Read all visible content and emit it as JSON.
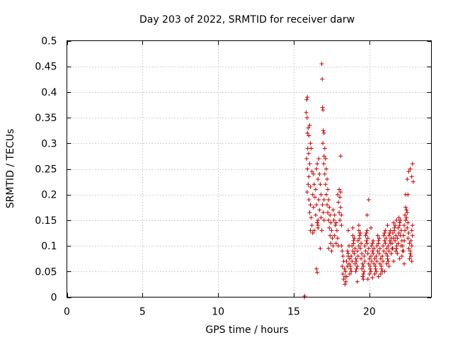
{
  "chart_data": {
    "type": "scatter",
    "title": "Day 203 of 2022, SRMTID for receiver darw",
    "xlabel": "GPS time / hours",
    "ylabel": "SRMTID / TECUs",
    "xlim": [
      0,
      24.1
    ],
    "ylim": [
      0,
      0.5
    ],
    "xticks": [
      0,
      5,
      10,
      15,
      20
    ],
    "xtick_labels": [
      "0",
      "5",
      "10",
      "15",
      "20"
    ],
    "yticks": [
      0,
      0.05,
      0.1,
      0.15,
      0.2,
      0.25,
      0.3,
      0.35,
      0.4,
      0.45,
      0.5
    ],
    "ytick_labels": [
      "0",
      "0.05",
      "0.1",
      "0.15",
      "0.2",
      "0.25",
      "0.3",
      "0.35",
      "0.4",
      "0.45",
      "0.5"
    ],
    "grid": true,
    "marker": "+",
    "series_color": "#cc0000",
    "points": [
      [
        15.7,
        0.0
      ],
      [
        15.72,
        0.002
      ],
      [
        15.85,
        0.385
      ],
      [
        15.9,
        0.39
      ],
      [
        15.82,
        0.36
      ],
      [
        15.88,
        0.35
      ],
      [
        15.95,
        0.33
      ],
      [
        16.05,
        0.335
      ],
      [
        15.9,
        0.32
      ],
      [
        16.0,
        0.315
      ],
      [
        16.1,
        0.3
      ],
      [
        15.92,
        0.29
      ],
      [
        15.98,
        0.28
      ],
      [
        16.15,
        0.29
      ],
      [
        15.85,
        0.27
      ],
      [
        16.05,
        0.26
      ],
      [
        15.9,
        0.25
      ],
      [
        16.2,
        0.245
      ],
      [
        16.0,
        0.235
      ],
      [
        16.3,
        0.24
      ],
      [
        15.95,
        0.22
      ],
      [
        16.1,
        0.215
      ],
      [
        16.35,
        0.22
      ],
      [
        15.88,
        0.205
      ],
      [
        16.25,
        0.2
      ],
      [
        16.0,
        0.19
      ],
      [
        16.4,
        0.195
      ],
      [
        16.1,
        0.18
      ],
      [
        16.3,
        0.175
      ],
      [
        16.5,
        0.18
      ],
      [
        16.05,
        0.165
      ],
      [
        16.45,
        0.16
      ],
      [
        16.15,
        0.155
      ],
      [
        16.6,
        0.15
      ],
      [
        16.2,
        0.14
      ],
      [
        16.55,
        0.145
      ],
      [
        16.1,
        0.13
      ],
      [
        16.35,
        0.13
      ],
      [
        16.6,
        0.135
      ],
      [
        16.25,
        0.125
      ],
      [
        16.55,
        0.26
      ],
      [
        16.65,
        0.27
      ],
      [
        16.5,
        0.25
      ],
      [
        16.7,
        0.24
      ],
      [
        16.6,
        0.23
      ],
      [
        16.75,
        0.22
      ],
      [
        16.45,
        0.21
      ],
      [
        16.8,
        0.2
      ],
      [
        16.65,
        0.19
      ],
      [
        16.9,
        0.18
      ],
      [
        16.7,
        0.17
      ],
      [
        16.95,
        0.165
      ],
      [
        16.8,
        0.155
      ],
      [
        17.0,
        0.15
      ],
      [
        16.6,
        0.14
      ],
      [
        16.85,
        0.13
      ],
      [
        16.5,
        0.055
      ],
      [
        16.55,
        0.048
      ],
      [
        16.85,
        0.455
      ],
      [
        16.88,
        0.425
      ],
      [
        16.9,
        0.37
      ],
      [
        16.93,
        0.365
      ],
      [
        16.95,
        0.325
      ],
      [
        17.0,
        0.32
      ],
      [
        16.92,
        0.3
      ],
      [
        17.05,
        0.29
      ],
      [
        17.0,
        0.275
      ],
      [
        17.1,
        0.27
      ],
      [
        16.98,
        0.26
      ],
      [
        17.15,
        0.25
      ],
      [
        17.05,
        0.24
      ],
      [
        17.2,
        0.23
      ],
      [
        17.1,
        0.22
      ],
      [
        17.25,
        0.21
      ],
      [
        17.15,
        0.2
      ],
      [
        17.3,
        0.19
      ],
      [
        17.2,
        0.18
      ],
      [
        17.35,
        0.175
      ],
      [
        17.25,
        0.165
      ],
      [
        17.4,
        0.16
      ],
      [
        17.3,
        0.15
      ],
      [
        17.45,
        0.145
      ],
      [
        17.35,
        0.135
      ],
      [
        17.5,
        0.13
      ],
      [
        17.4,
        0.12
      ],
      [
        17.55,
        0.115
      ],
      [
        17.45,
        0.105
      ],
      [
        17.6,
        0.1
      ],
      [
        17.3,
        0.095
      ],
      [
        17.5,
        0.09
      ],
      [
        17.6,
        0.17
      ],
      [
        17.7,
        0.16
      ],
      [
        17.65,
        0.15
      ],
      [
        17.8,
        0.145
      ],
      [
        17.75,
        0.14
      ],
      [
        17.85,
        0.13
      ],
      [
        17.7,
        0.12
      ],
      [
        17.9,
        0.115
      ],
      [
        17.8,
        0.105
      ],
      [
        17.95,
        0.1
      ],
      [
        17.9,
        0.2
      ],
      [
        18.0,
        0.21
      ],
      [
        18.05,
        0.195
      ],
      [
        18.1,
        0.205
      ],
      [
        17.95,
        0.185
      ],
      [
        18.1,
        0.175
      ],
      [
        18.0,
        0.165
      ],
      [
        18.15,
        0.16
      ],
      [
        18.05,
        0.15
      ],
      [
        18.15,
        0.14
      ],
      [
        18.1,
        0.275
      ],
      [
        17.0,
        0.19
      ],
      [
        16.75,
        0.095
      ],
      [
        18.15,
        0.1
      ],
      [
        18.2,
        0.09
      ],
      [
        18.25,
        0.08
      ],
      [
        18.3,
        0.07
      ],
      [
        18.2,
        0.06
      ],
      [
        18.35,
        0.055
      ],
      [
        18.25,
        0.045
      ],
      [
        18.4,
        0.04
      ],
      [
        18.3,
        0.035
      ],
      [
        18.45,
        0.03
      ],
      [
        18.38,
        0.025
      ],
      [
        18.5,
        0.04
      ],
      [
        18.42,
        0.05
      ],
      [
        18.55,
        0.06
      ],
      [
        18.48,
        0.07
      ],
      [
        18.6,
        0.08
      ],
      [
        18.55,
        0.09
      ],
      [
        18.65,
        0.1
      ],
      [
        18.6,
        0.085
      ],
      [
        18.7,
        0.075
      ],
      [
        18.65,
        0.065
      ],
      [
        18.75,
        0.055
      ],
      [
        18.7,
        0.045
      ],
      [
        18.8,
        0.05
      ],
      [
        18.75,
        0.06
      ],
      [
        18.85,
        0.07
      ],
      [
        18.8,
        0.08
      ],
      [
        18.9,
        0.09
      ],
      [
        18.85,
        0.1
      ],
      [
        18.95,
        0.11
      ],
      [
        18.9,
        0.12
      ],
      [
        19.0,
        0.115
      ],
      [
        18.95,
        0.105
      ],
      [
        19.05,
        0.095
      ],
      [
        19.0,
        0.085
      ],
      [
        19.1,
        0.075
      ],
      [
        19.05,
        0.065
      ],
      [
        19.15,
        0.055
      ],
      [
        19.1,
        0.05
      ],
      [
        19.2,
        0.06
      ],
      [
        19.15,
        0.07
      ],
      [
        19.25,
        0.08
      ],
      [
        19.2,
        0.09
      ],
      [
        19.3,
        0.1
      ],
      [
        19.25,
        0.11
      ],
      [
        19.35,
        0.12
      ],
      [
        19.3,
        0.13
      ],
      [
        19.4,
        0.125
      ],
      [
        19.35,
        0.115
      ],
      [
        19.45,
        0.105
      ],
      [
        19.4,
        0.095
      ],
      [
        19.5,
        0.085
      ],
      [
        19.45,
        0.075
      ],
      [
        19.55,
        0.065
      ],
      [
        19.5,
        0.055
      ],
      [
        19.6,
        0.045
      ],
      [
        19.55,
        0.04
      ],
      [
        19.65,
        0.05
      ],
      [
        19.6,
        0.06
      ],
      [
        19.7,
        0.07
      ],
      [
        19.65,
        0.08
      ],
      [
        19.75,
        0.09
      ],
      [
        19.7,
        0.1
      ],
      [
        19.8,
        0.11
      ],
      [
        19.75,
        0.12
      ],
      [
        19.85,
        0.13
      ],
      [
        19.8,
        0.125
      ],
      [
        19.9,
        0.115
      ],
      [
        19.85,
        0.105
      ],
      [
        19.95,
        0.095
      ],
      [
        19.9,
        0.085
      ],
      [
        20.0,
        0.075
      ],
      [
        19.95,
        0.065
      ],
      [
        20.05,
        0.055
      ],
      [
        20.0,
        0.045
      ],
      [
        20.1,
        0.05
      ],
      [
        20.05,
        0.06
      ],
      [
        20.15,
        0.07
      ],
      [
        20.1,
        0.08
      ],
      [
        20.2,
        0.09
      ],
      [
        20.15,
        0.1
      ],
      [
        20.25,
        0.11
      ],
      [
        20.2,
        0.105
      ],
      [
        20.3,
        0.095
      ],
      [
        20.25,
        0.085
      ],
      [
        20.35,
        0.075
      ],
      [
        20.3,
        0.065
      ],
      [
        20.4,
        0.055
      ],
      [
        20.35,
        0.045
      ],
      [
        20.45,
        0.05
      ],
      [
        20.4,
        0.06
      ],
      [
        20.5,
        0.07
      ],
      [
        20.45,
        0.08
      ],
      [
        20.55,
        0.09
      ],
      [
        20.5,
        0.1
      ],
      [
        20.6,
        0.11
      ],
      [
        20.55,
        0.12
      ],
      [
        20.65,
        0.115
      ],
      [
        20.6,
        0.105
      ],
      [
        20.7,
        0.095
      ],
      [
        20.65,
        0.085
      ],
      [
        20.75,
        0.075
      ],
      [
        20.7,
        0.065
      ],
      [
        20.8,
        0.055
      ],
      [
        20.75,
        0.045
      ],
      [
        20.85,
        0.05
      ],
      [
        20.8,
        0.06
      ],
      [
        20.9,
        0.07
      ],
      [
        18.6,
        0.13
      ],
      [
        18.9,
        0.135
      ],
      [
        19.3,
        0.14
      ],
      [
        19.2,
        0.03
      ],
      [
        19.6,
        0.035
      ],
      [
        19.9,
        0.035
      ],
      [
        20.2,
        0.038
      ],
      [
        20.6,
        0.04
      ],
      [
        19.95,
        0.19
      ],
      [
        19.85,
        0.16
      ],
      [
        20.1,
        0.135
      ],
      [
        20.85,
        0.08
      ],
      [
        20.95,
        0.09
      ],
      [
        20.9,
        0.1
      ],
      [
        21.0,
        0.11
      ],
      [
        20.95,
        0.12
      ],
      [
        21.05,
        0.13
      ],
      [
        21.0,
        0.125
      ],
      [
        21.1,
        0.115
      ],
      [
        21.05,
        0.105
      ],
      [
        21.15,
        0.095
      ],
      [
        21.1,
        0.085
      ],
      [
        21.2,
        0.075
      ],
      [
        21.15,
        0.065
      ],
      [
        21.25,
        0.07
      ],
      [
        21.2,
        0.08
      ],
      [
        21.3,
        0.09
      ],
      [
        21.25,
        0.1
      ],
      [
        21.35,
        0.11
      ],
      [
        21.3,
        0.12
      ],
      [
        21.4,
        0.13
      ],
      [
        21.35,
        0.125
      ],
      [
        21.45,
        0.115
      ],
      [
        21.4,
        0.105
      ],
      [
        21.5,
        0.095
      ],
      [
        21.45,
        0.085
      ],
      [
        21.55,
        0.095
      ],
      [
        21.5,
        0.105
      ],
      [
        21.6,
        0.115
      ],
      [
        21.55,
        0.125
      ],
      [
        21.65,
        0.135
      ],
      [
        21.6,
        0.145
      ],
      [
        21.7,
        0.14
      ],
      [
        21.65,
        0.13
      ],
      [
        21.75,
        0.12
      ],
      [
        21.7,
        0.11
      ],
      [
        21.8,
        0.1
      ],
      [
        21.75,
        0.09
      ],
      [
        21.85,
        0.085
      ],
      [
        21.8,
        0.095
      ],
      [
        21.9,
        0.105
      ],
      [
        21.85,
        0.115
      ],
      [
        21.95,
        0.125
      ],
      [
        21.9,
        0.135
      ],
      [
        22.0,
        0.145
      ],
      [
        21.95,
        0.155
      ],
      [
        22.05,
        0.15
      ],
      [
        22.0,
        0.14
      ],
      [
        22.1,
        0.13
      ],
      [
        22.05,
        0.12
      ],
      [
        22.15,
        0.11
      ],
      [
        22.1,
        0.1
      ],
      [
        22.2,
        0.09
      ],
      [
        22.15,
        0.08
      ],
      [
        22.25,
        0.09
      ],
      [
        22.2,
        0.1
      ],
      [
        22.3,
        0.11
      ],
      [
        22.25,
        0.12
      ],
      [
        22.35,
        0.13
      ],
      [
        22.3,
        0.14
      ],
      [
        22.4,
        0.15
      ],
      [
        22.35,
        0.16
      ],
      [
        22.45,
        0.17
      ],
      [
        22.4,
        0.175
      ],
      [
        22.5,
        0.165
      ],
      [
        22.45,
        0.155
      ],
      [
        22.55,
        0.145
      ],
      [
        22.5,
        0.135
      ],
      [
        22.6,
        0.125
      ],
      [
        22.55,
        0.115
      ],
      [
        22.65,
        0.105
      ],
      [
        22.6,
        0.095
      ],
      [
        22.7,
        0.085
      ],
      [
        22.65,
        0.075
      ],
      [
        22.75,
        0.08
      ],
      [
        22.7,
        0.09
      ],
      [
        22.8,
        0.1
      ],
      [
        22.75,
        0.11
      ],
      [
        22.85,
        0.12
      ],
      [
        22.8,
        0.13
      ],
      [
        22.85,
        0.14
      ],
      [
        22.4,
        0.2
      ],
      [
        22.55,
        0.2
      ],
      [
        22.5,
        0.23
      ],
      [
        22.6,
        0.245
      ],
      [
        22.7,
        0.25
      ],
      [
        22.85,
        0.26
      ],
      [
        22.8,
        0.235
      ],
      [
        22.9,
        0.225
      ],
      [
        21.3,
        0.06
      ],
      [
        21.0,
        0.05
      ],
      [
        21.6,
        0.07
      ],
      [
        22.0,
        0.075
      ],
      [
        22.3,
        0.065
      ],
      [
        22.8,
        0.07
      ],
      [
        21.8,
        0.15
      ],
      [
        21.2,
        0.14
      ]
    ]
  }
}
